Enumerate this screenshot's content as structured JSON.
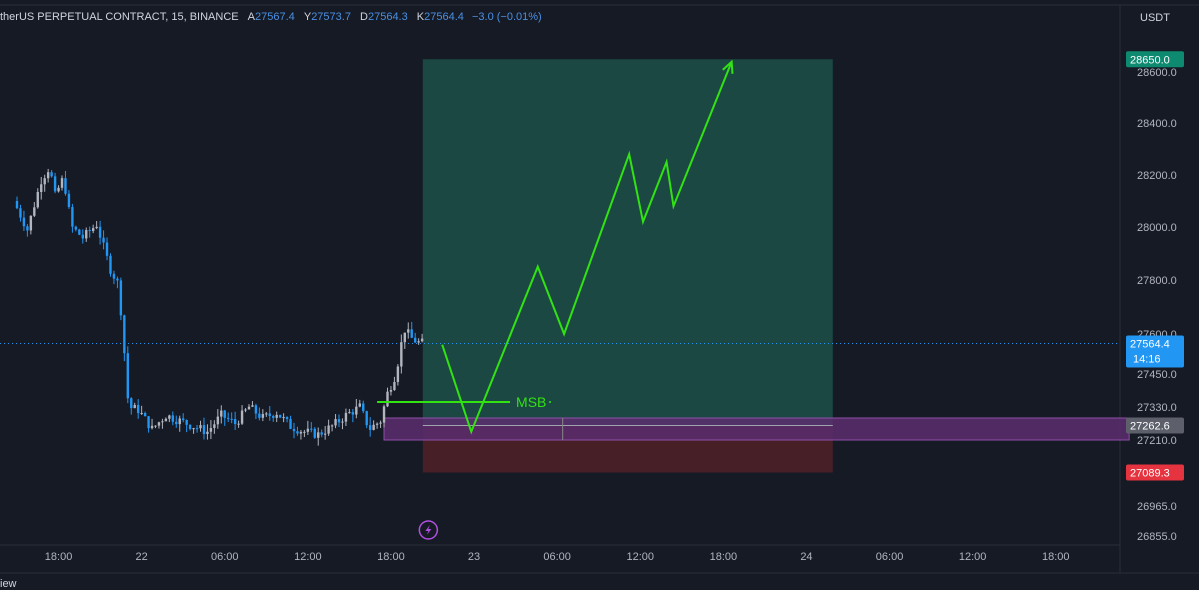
{
  "header": {
    "symbol": "therUS PERPETUAL CONTRACT, 15, BINANCE",
    "open_label": "A",
    "open": "27567.4",
    "high_label": "Y",
    "high": "27573.7",
    "low_label": "D",
    "low": "27564.3",
    "close_label": "K",
    "close": "27564.4",
    "change": "−3.0 (−0.01%)"
  },
  "currency": "USDT",
  "footer_text": "iew",
  "colors": {
    "background": "#161a25",
    "up_candle": "#b2b5be",
    "down_candle": "#2196f3",
    "target_zone": "#1b4b45",
    "stop_zone": "#4a2027",
    "supply_zone": "#5c2d6e",
    "projection_line": "#32e312",
    "target_badge": "#0e8a70",
    "stop_badge": "#e5343f",
    "price_badge": "#2196f3",
    "entry_badge": "#5d606b"
  },
  "icons": {
    "alert": "lightning-icon"
  },
  "chart_data": {
    "type": "candlestick",
    "ylim": [
      26820,
      28680
    ],
    "y_ticks": [
      26855.0,
      26965.0,
      27210.0,
      27330.0,
      27450.0,
      27600.0,
      27800.0,
      28000.0,
      28200.0,
      28400.0,
      28600.0
    ],
    "y_tick_labels": [
      "26855.0",
      "26965.0",
      "27210.0",
      "27330.0",
      "27450.0",
      "27600.0",
      "27800.0",
      "28000.0",
      "28200.0",
      "28400.0",
      "28600.0"
    ],
    "x_ticks": [
      {
        "label": "18:00",
        "t": 3
      },
      {
        "label": "22",
        "t": 9
      },
      {
        "label": "06:00",
        "t": 15
      },
      {
        "label": "12:00",
        "t": 21
      },
      {
        "label": "18:00",
        "t": 27
      },
      {
        "label": "23",
        "t": 33
      },
      {
        "label": "06:00",
        "t": 39
      },
      {
        "label": "12:00",
        "t": 45
      },
      {
        "label": "18:00",
        "t": 51
      },
      {
        "label": "24",
        "t": 57
      },
      {
        "label": "06:00",
        "t": 63
      },
      {
        "label": "12:00",
        "t": 69
      },
      {
        "label": "18:00",
        "t": 75
      }
    ],
    "price_path": [
      [
        0,
        28100
      ],
      [
        1,
        27990
      ],
      [
        2,
        28180
      ],
      [
        2.6,
        28230
      ],
      [
        3,
        28120
      ],
      [
        3.6,
        28190
      ],
      [
        4.2,
        28000
      ],
      [
        5,
        27960
      ],
      [
        6,
        28010
      ],
      [
        7,
        27840
      ],
      [
        7.6,
        27780
      ],
      [
        8,
        27530
      ],
      [
        8.3,
        27330
      ],
      [
        9,
        27320
      ],
      [
        10,
        27250
      ],
      [
        11,
        27300
      ],
      [
        12,
        27280
      ],
      [
        13,
        27260
      ],
      [
        14,
        27240
      ],
      [
        15,
        27300
      ],
      [
        16,
        27270
      ],
      [
        17,
        27330
      ],
      [
        18,
        27290
      ],
      [
        19,
        27310
      ],
      [
        20,
        27260
      ],
      [
        21,
        27240
      ],
      [
        22,
        27230
      ],
      [
        23,
        27260
      ],
      [
        24,
        27300
      ],
      [
        25,
        27330
      ],
      [
        25.7,
        27250
      ],
      [
        26.5,
        27280
      ],
      [
        27,
        27380
      ],
      [
        27.6,
        27450
      ],
      [
        28.2,
        27620
      ],
      [
        28.8,
        27580
      ],
      [
        29.3,
        27567
      ]
    ],
    "last_price": 27564.4,
    "countdown": "14:16",
    "position": {
      "t_start": 29.3,
      "t_end": 58.9,
      "entry": 27262.6,
      "target": 28650.0,
      "stop": 27089.3,
      "target_label": "28650.0",
      "entry_label": "27262.6",
      "stop_label": "27089.3"
    },
    "supply_zone": {
      "t_start": 26.5,
      "t_end": 80.3,
      "top": 27290,
      "bottom": 27210
    },
    "msb": {
      "label": "MSB",
      "level": 27348,
      "t_start": 26,
      "t_end": 35.6
    },
    "projection": [
      [
        30.7,
        27560
      ],
      [
        32.8,
        27240
      ],
      [
        37.6,
        27850
      ],
      [
        39.5,
        27600
      ],
      [
        44.2,
        28280
      ],
      [
        45.2,
        28020
      ],
      [
        46.9,
        28250
      ],
      [
        47.4,
        28080
      ],
      [
        51.6,
        28640
      ]
    ]
  }
}
